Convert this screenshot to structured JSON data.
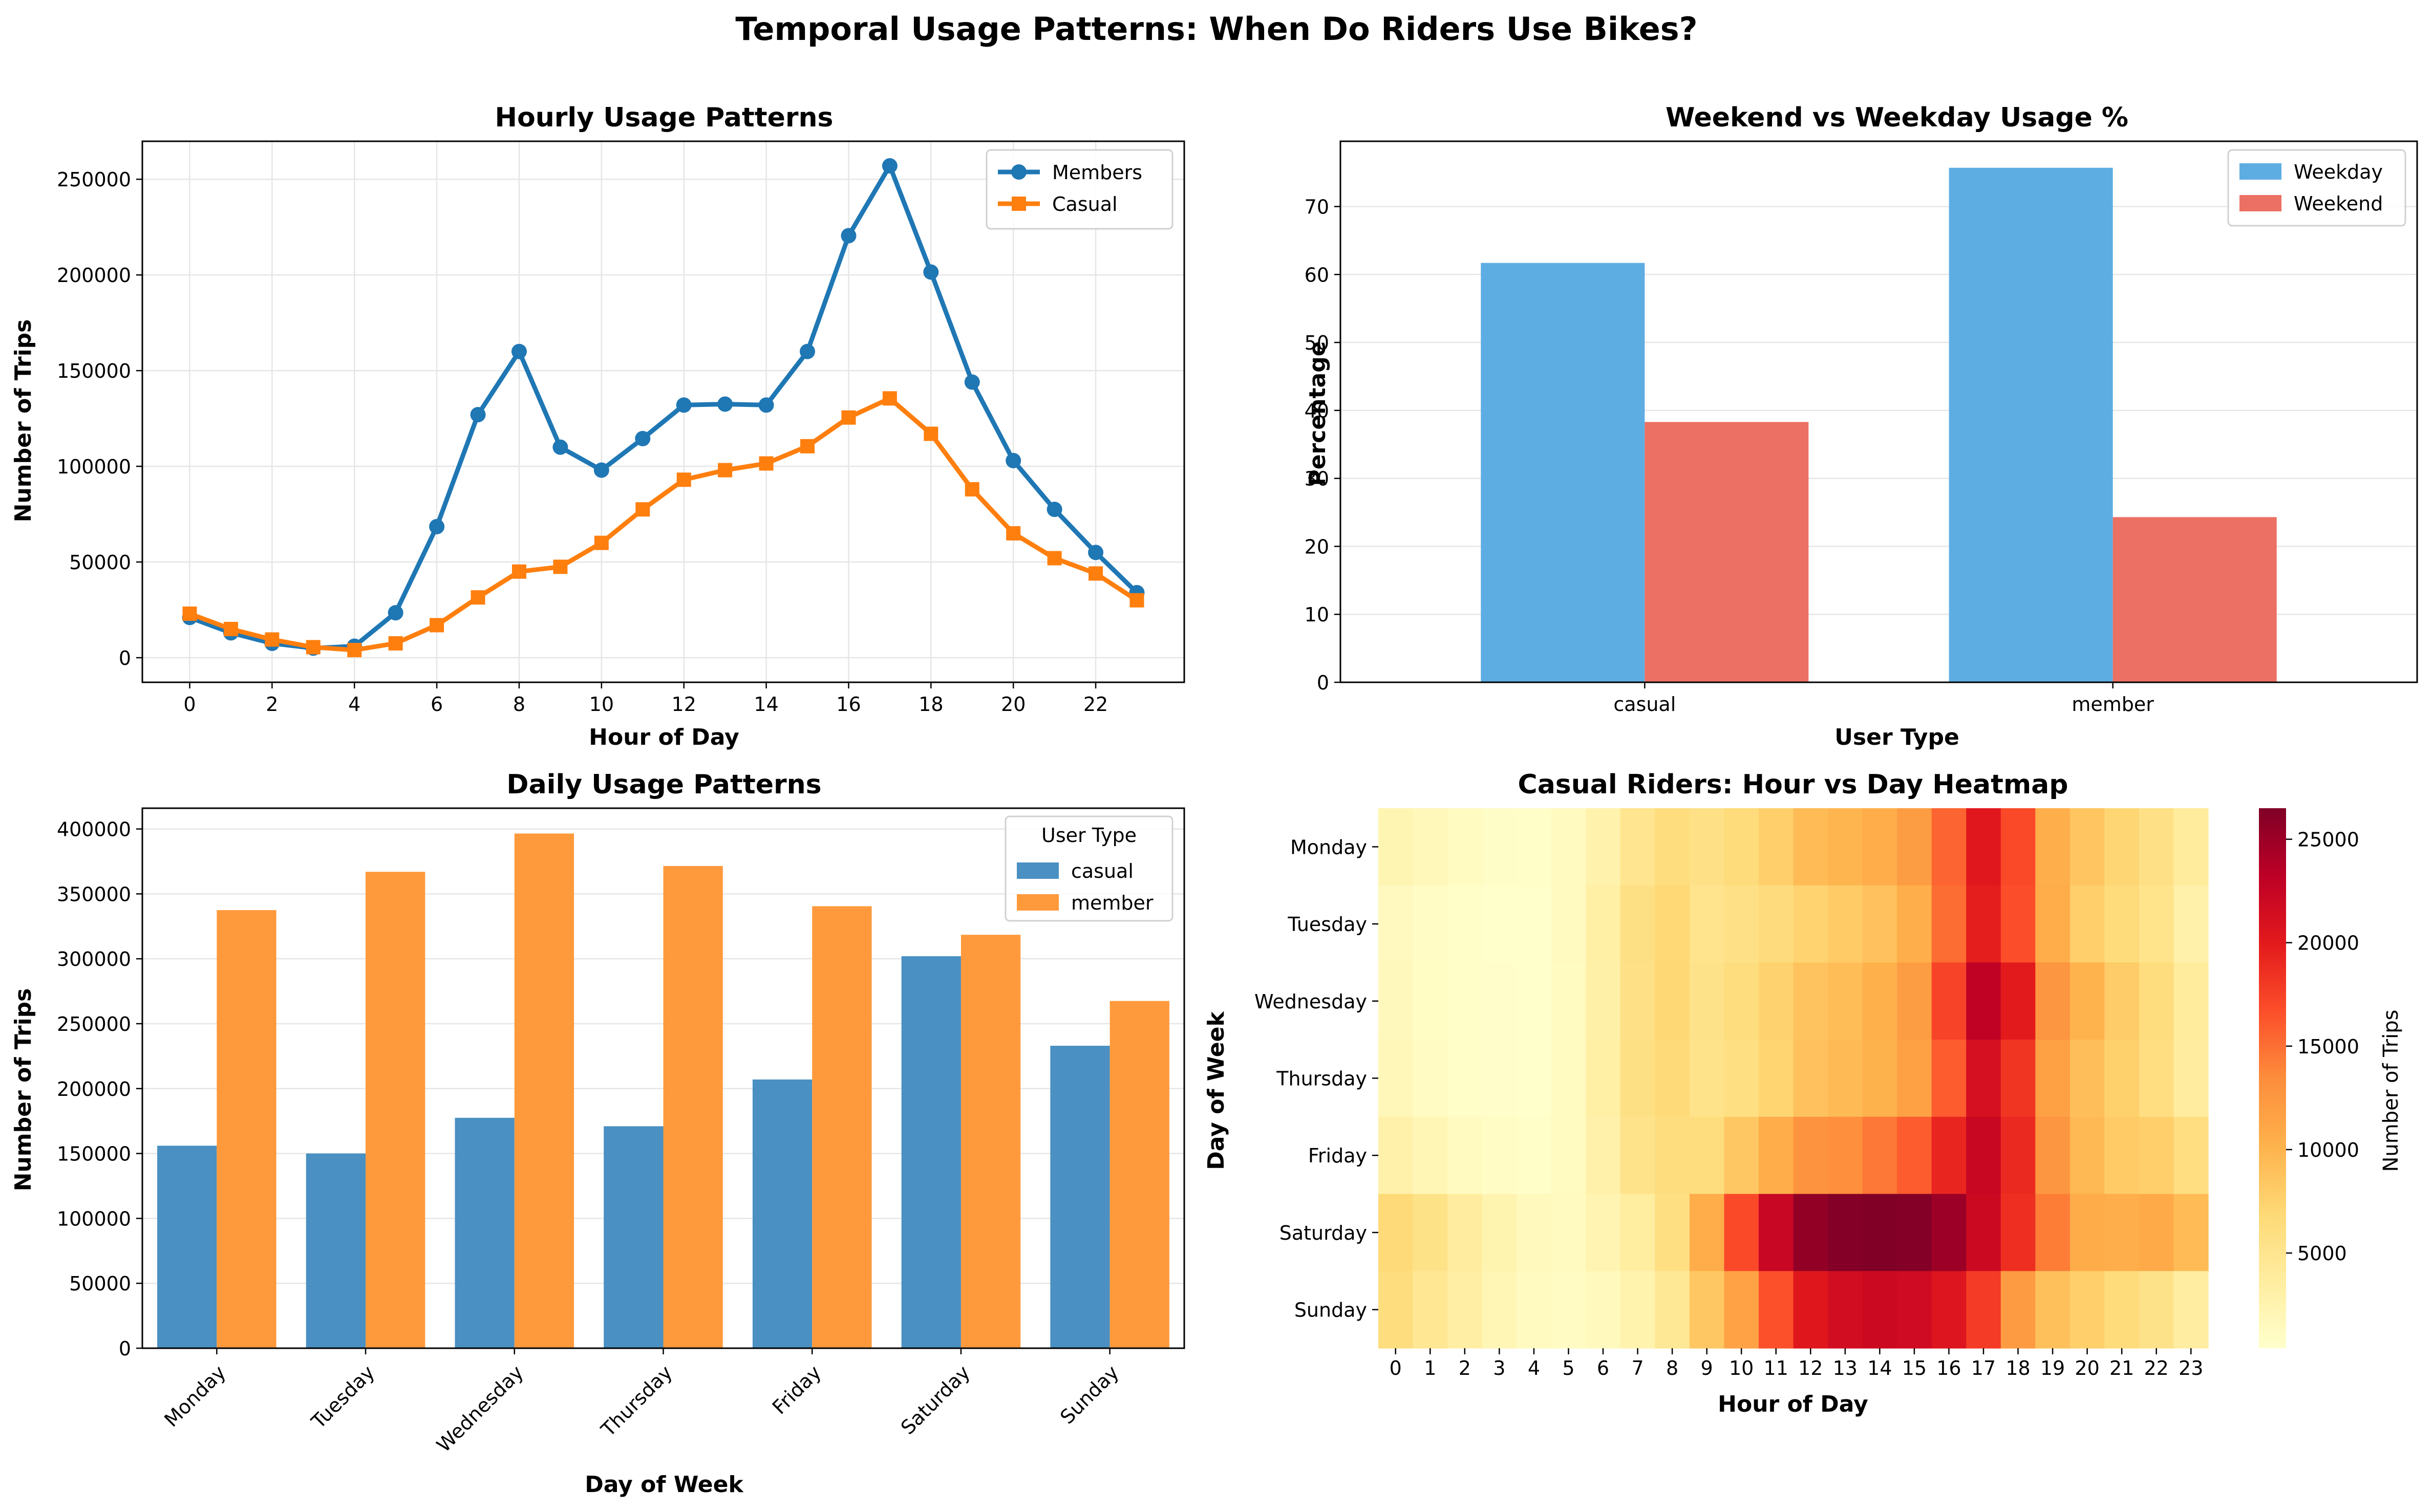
{
  "figure": {
    "suptitle": "Temporal Usage Patterns: When Do Riders Use Bikes?"
  },
  "chart_data": [
    {
      "id": "hourly",
      "type": "line",
      "title": "Hourly Usage Patterns",
      "xlabel": "Hour of Day",
      "ylabel": "Number of Trips",
      "x": [
        0,
        1,
        2,
        3,
        4,
        5,
        6,
        7,
        8,
        9,
        10,
        11,
        12,
        13,
        14,
        15,
        16,
        17,
        18,
        19,
        20,
        21,
        22,
        23
      ],
      "xlim": [
        -1.15,
        24.15
      ],
      "ylim": [
        -12850,
        269850
      ],
      "xticks": [
        0,
        2,
        4,
        6,
        8,
        10,
        12,
        14,
        16,
        18,
        20,
        22
      ],
      "yticks": [
        0,
        50000,
        100000,
        150000,
        200000,
        250000
      ],
      "grid": true,
      "legend": "top-right",
      "series": [
        {
          "name": "Members",
          "color": "#1f77b4",
          "marker": "circle",
          "values": [
            21000,
            13000,
            7500,
            5000,
            6000,
            23500,
            68500,
            127000,
            160000,
            110000,
            98000,
            114500,
            132000,
            132500,
            132000,
            160000,
            220500,
            257000,
            201500,
            144000,
            103000,
            77500,
            55000,
            34000
          ]
        },
        {
          "name": "Casual",
          "color": "#ff7f0e",
          "marker": "square",
          "values": [
            23000,
            15000,
            9500,
            5500,
            4000,
            7500,
            17000,
            31500,
            45000,
            47500,
            60000,
            77500,
            93000,
            98000,
            101500,
            110500,
            125500,
            135500,
            117000,
            88000,
            65000,
            52000,
            44000,
            30000
          ]
        }
      ]
    },
    {
      "id": "weekend_weekday",
      "type": "bar",
      "title": "Weekend vs Weekday Usage %",
      "xlabel": "User Type",
      "ylabel": "Percentage",
      "categories": [
        "casual",
        "member"
      ],
      "ylim": [
        0,
        79.6
      ],
      "yticks": [
        0,
        10,
        20,
        30,
        40,
        50,
        60,
        70
      ],
      "grid": true,
      "legend": "top-right",
      "series": [
        {
          "name": "Weekday",
          "color": "#5dade2",
          "values": [
            61.7,
            75.7
          ]
        },
        {
          "name": "Weekend",
          "color": "#ec7063",
          "values": [
            38.3,
            24.3
          ]
        }
      ]
    },
    {
      "id": "daily",
      "type": "bar",
      "title": "Daily Usage Patterns",
      "xlabel": "Day of Week",
      "ylabel": "Number of Trips",
      "categories": [
        "Monday",
        "Tuesday",
        "Wednesday",
        "Thursday",
        "Friday",
        "Saturday",
        "Sunday"
      ],
      "ylim": [
        0,
        416000
      ],
      "yticks": [
        0,
        50000,
        100000,
        150000,
        200000,
        250000,
        300000,
        350000,
        400000
      ],
      "grid": true,
      "legend": "top-right",
      "legend_title": "User Type",
      "series": [
        {
          "name": "casual",
          "color": "#4a90c2",
          "values": [
            156000,
            150000,
            177500,
            171000,
            207000,
            302000,
            233000
          ]
        },
        {
          "name": "member",
          "color": "#ff9a3c",
          "values": [
            337500,
            367000,
            396500,
            371500,
            340500,
            318500,
            267500
          ]
        }
      ]
    },
    {
      "id": "heatmap",
      "type": "heatmap",
      "title": "Casual Riders: Hour vs Day Heatmap",
      "xlabel": "Hour of Day",
      "ylabel": "Day of Week",
      "x": [
        0,
        1,
        2,
        3,
        4,
        5,
        6,
        7,
        8,
        9,
        10,
        11,
        12,
        13,
        14,
        15,
        16,
        17,
        18,
        19,
        20,
        21,
        22,
        23
      ],
      "y": [
        "Monday",
        "Tuesday",
        "Wednesday",
        "Thursday",
        "Friday",
        "Saturday",
        "Sunday"
      ],
      "colorbar": {
        "label": "Number of Trips",
        "min": 400,
        "max": 26500,
        "ticks": [
          5000,
          10000,
          15000,
          20000,
          25000
        ]
      },
      "values": [
        [
          2300,
          1700,
          1200,
          800,
          700,
          1300,
          2700,
          5000,
          6200,
          5600,
          6500,
          7800,
          9400,
          9900,
          10600,
          12000,
          15500,
          20200,
          17000,
          10500,
          8600,
          7100,
          5700,
          3900
        ],
        [
          1400,
          900,
          600,
          400,
          400,
          1300,
          3200,
          5800,
          6900,
          5100,
          5600,
          6400,
          7400,
          8100,
          8900,
          10500,
          15100,
          19800,
          16800,
          10600,
          7800,
          6500,
          5200,
          3000
        ],
        [
          1600,
          1000,
          700,
          500,
          400,
          1200,
          3100,
          5700,
          7000,
          5400,
          6300,
          7500,
          8800,
          9300,
          10400,
          12000,
          17400,
          23000,
          20000,
          12700,
          10100,
          8000,
          6300,
          3900
        ],
        [
          1800,
          1100,
          700,
          500,
          400,
          1200,
          3200,
          5800,
          6800,
          5300,
          6000,
          7300,
          8900,
          9500,
          10200,
          11700,
          16000,
          21200,
          18300,
          11800,
          9100,
          7600,
          6100,
          3800
        ],
        [
          2900,
          2000,
          1300,
          900,
          700,
          1200,
          2900,
          5300,
          6200,
          6300,
          8400,
          10600,
          12900,
          13300,
          14600,
          16000,
          19300,
          22300,
          19000,
          12700,
          9600,
          8100,
          7800,
          6100
        ],
        [
          6800,
          5500,
          3800,
          2500,
          1500,
          1300,
          2400,
          3700,
          6000,
          10600,
          17000,
          22400,
          25500,
          26300,
          26500,
          26300,
          25000,
          22000,
          18700,
          14300,
          10800,
          10500,
          10900,
          9400
        ],
        [
          6200,
          4600,
          3400,
          2200,
          1300,
          1100,
          1500,
          2600,
          4500,
          8400,
          11600,
          16600,
          20300,
          21500,
          22000,
          21800,
          20600,
          17900,
          12200,
          9000,
          7800,
          6500,
          5400,
          3600
        ]
      ]
    }
  ]
}
